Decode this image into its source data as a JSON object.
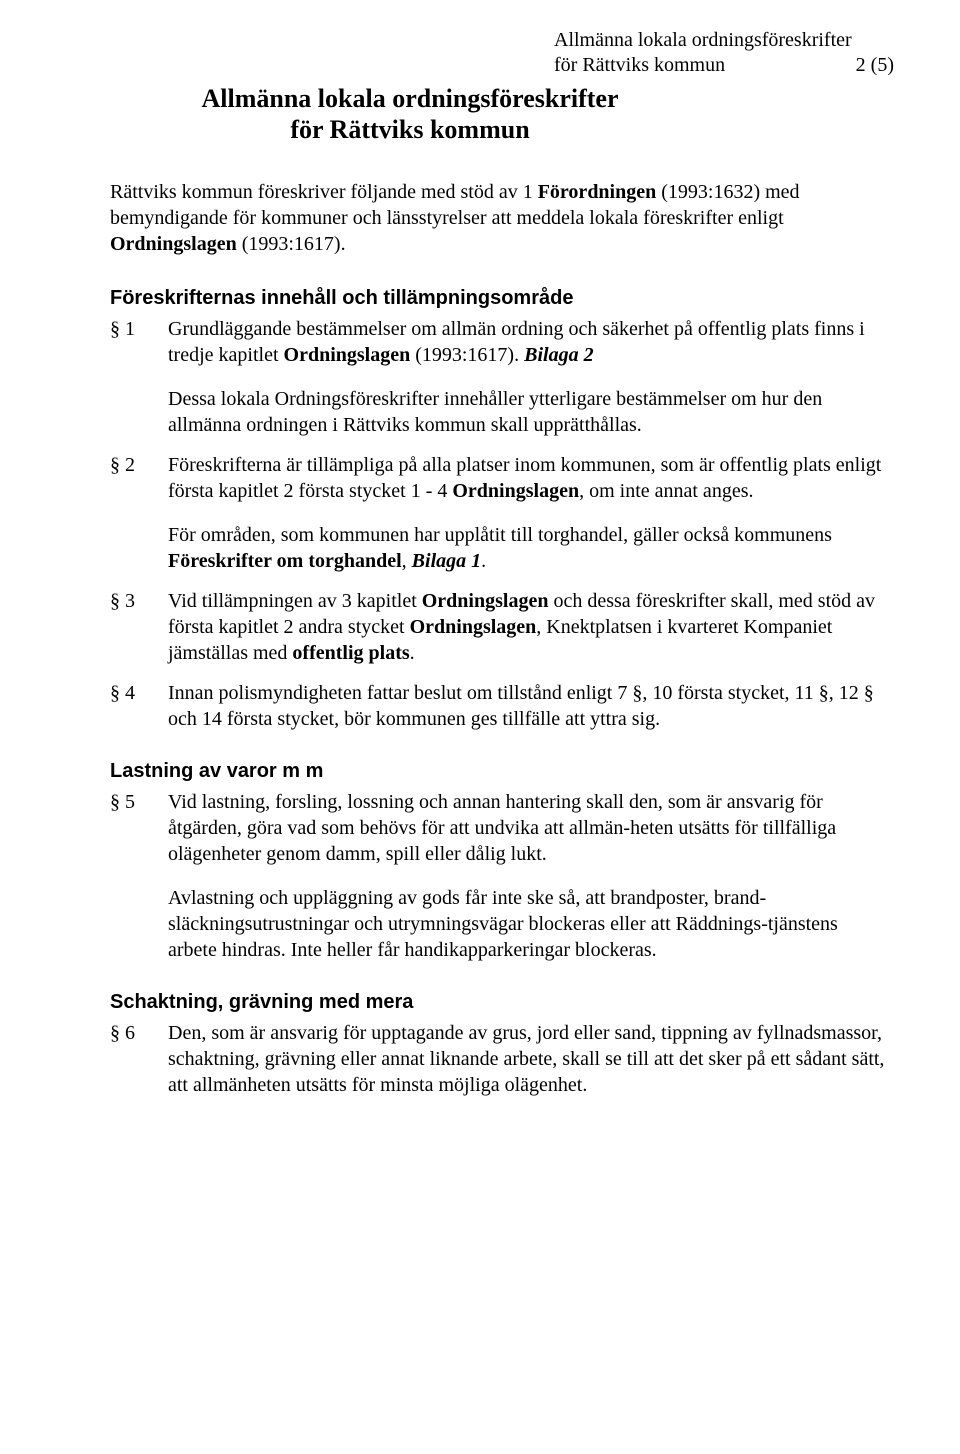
{
  "header": {
    "line1": "Allmänna lokala ordningsföreskrifter",
    "line2_left": "för Rättviks kommun",
    "line2_right": "2 (5)"
  },
  "title": {
    "line1": "Allmänna lokala ordningsföreskrifter",
    "line2": "för Rättviks kommun"
  },
  "intro": {
    "p1_a": "Rättviks kommun föreskriver följande med stöd av 1 ",
    "p1_b_bold": "Förordningen",
    "p1_c": " (1993:1632) med bemyndigande för kommuner och länsstyrelser att meddela lokala föreskrifter enligt ",
    "p1_d_bold": "Ordningslagen ",
    "p1_e": "(1993:1617)."
  },
  "section1_heading": "Föreskrifternas innehåll och tillämpningsområde",
  "s1": {
    "label": "§ 1",
    "p1_a": "Grundläggande bestämmelser om allmän ordning och säkerhet på offentlig plats finns i tredje kapitlet ",
    "p1_b_bold": "Ordningslagen ",
    "p1_c": "(1993:1617). ",
    "p1_d_bi": "Bilaga 2",
    "p2": "Dessa lokala Ordningsföreskrifter innehåller ytterligare bestämmelser om hur den allmänna ordningen i Rättviks kommun skall upprätthållas."
  },
  "s2": {
    "label": "§ 2",
    "p1_a": "Föreskrifterna är tillämpliga på alla platser inom kommunen, som är offentlig plats enligt första kapitlet 2 första stycket 1 - 4 ",
    "p1_b_bold": "Ordningslagen",
    "p1_c": ", om inte annat anges.",
    "p2_a": "För områden, som kommunen har upplåtit till torghandel, gäller också kommunens ",
    "p2_b_bold": "Föreskrifter om torghandel",
    "p2_c": ", ",
    "p2_d_bi": "Bilaga 1",
    "p2_e": "."
  },
  "s3": {
    "label": "§ 3",
    "p1_a": "Vid tillämpningen av 3 kapitlet ",
    "p1_b_bold": "Ordningslagen ",
    "p1_c": "och dessa föreskrifter skall, med stöd av första kapitlet 2 andra stycket ",
    "p1_d_bold": "Ordningslagen",
    "p1_e": ", Knektplatsen i kvarteret Kompaniet jämställas med ",
    "p1_f_bold": "offentlig plats",
    "p1_g": "."
  },
  "s4": {
    "label": "§ 4",
    "p1": "Innan polismyndigheten fattar beslut om tillstånd enligt 7 §, 10 första stycket, 11 §, 12 § och 14 första stycket, bör kommunen ges tillfälle att yttra sig."
  },
  "section2_heading": "Lastning av varor m m",
  "s5": {
    "label": "§ 5",
    "p1": "Vid lastning, forsling, lossning och annan hantering skall den, som är ansvarig för åtgärden, göra vad som behövs för att undvika att allmän-heten utsätts för tillfälliga olägenheter genom damm, spill eller dålig lukt.",
    "p2": "Avlastning och uppläggning av gods får inte ske så, att brandposter, brand-släckningsutrustningar och utrymningsvägar blockeras eller att Räddnings-tjänstens arbete hindras. Inte heller får handikapparkeringar blockeras."
  },
  "section3_heading": "Schaktning, grävning med mera",
  "s6": {
    "label": "§ 6",
    "p1": "Den, som är ansvarig för upptagande av grus, jord eller sand, tippning av fyllnadsmassor, schaktning, grävning eller annat liknande arbete, skall se till att det sker på ett sådant sätt, att allmänheten utsätts för minsta möjliga olägenhet."
  },
  "colors": {
    "text": "#000000",
    "background": "#ffffff"
  },
  "fonts": {
    "body_family": "Times New Roman",
    "heading_family": "Arial",
    "body_size_pt": 15,
    "title_size_pt": 20
  }
}
